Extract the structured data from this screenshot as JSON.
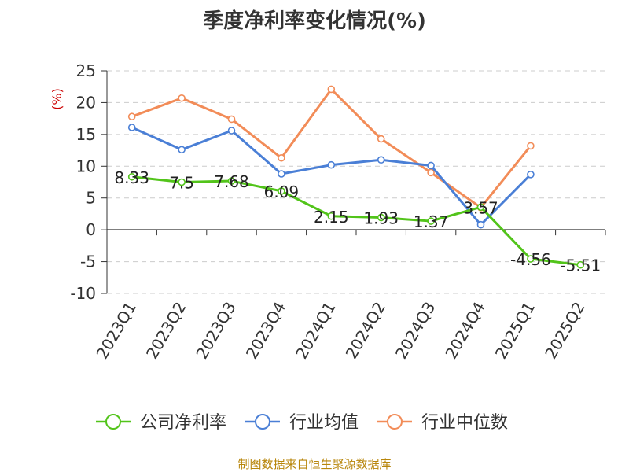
{
  "chart_data": {
    "type": "line",
    "title": "季度净利率变化情况(%)",
    "ylabel": "(%)",
    "xlabel": "",
    "categories": [
      "2023Q1",
      "2023Q2",
      "2023Q3",
      "2023Q4",
      "2024Q1",
      "2024Q2",
      "2024Q3",
      "2024Q4",
      "2025Q1",
      "2025Q2"
    ],
    "ylim": [
      -10,
      25
    ],
    "yticks": [
      -10,
      -5,
      0,
      5,
      10,
      15,
      20,
      25
    ],
    "grid": true,
    "legend_position": "bottom",
    "series": [
      {
        "name": "公司净利率",
        "color": "#52c41a",
        "show_labels": true,
        "values": [
          8.33,
          7.5,
          7.68,
          6.09,
          2.15,
          1.93,
          1.37,
          3.57,
          -4.56,
          -5.51
        ]
      },
      {
        "name": "行业均值",
        "color": "#4a7fd6",
        "show_labels": false,
        "values": [
          16.1,
          12.6,
          15.6,
          8.8,
          10.2,
          11.0,
          10.1,
          0.8,
          8.7,
          null
        ]
      },
      {
        "name": "行业中位数",
        "color": "#f28c58",
        "show_labels": false,
        "values": [
          17.8,
          20.7,
          17.4,
          11.3,
          22.1,
          14.3,
          9.0,
          3.5,
          13.2,
          null
        ]
      }
    ]
  },
  "source": "制图数据来自恒生聚源数据库"
}
